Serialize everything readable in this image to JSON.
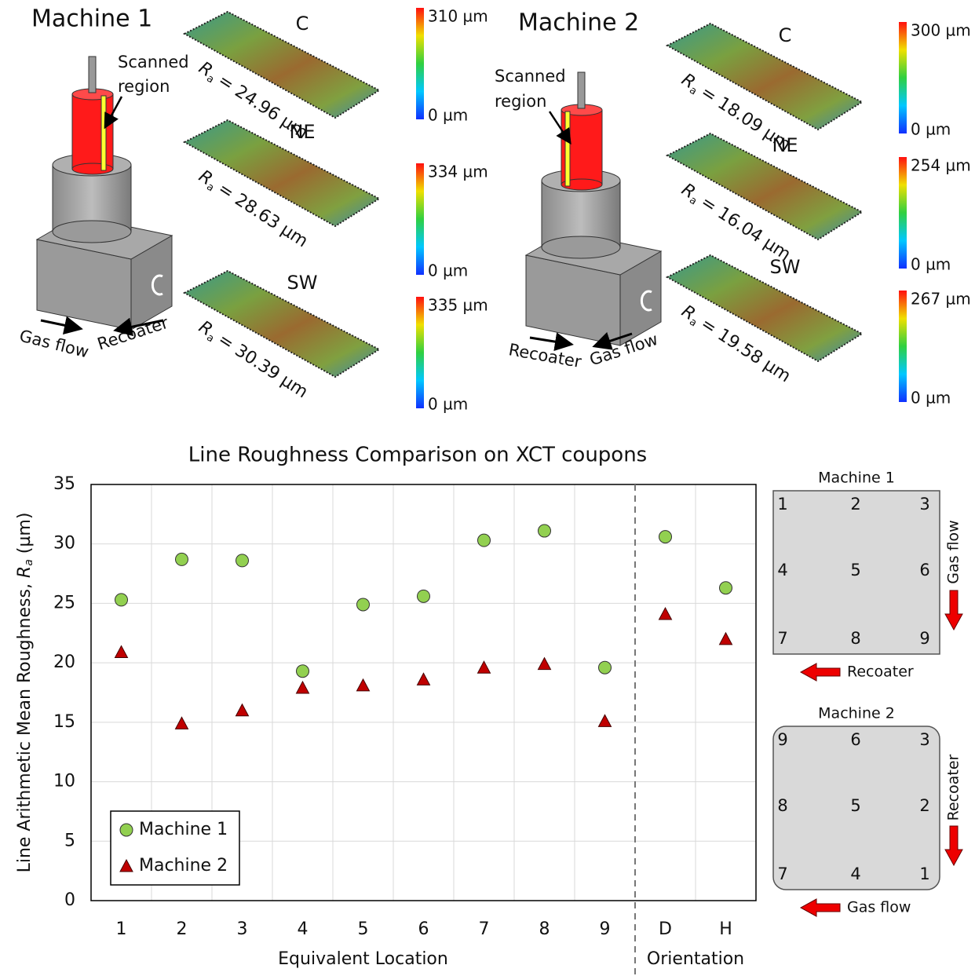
{
  "ra_symbol": "R",
  "ra_subscript": "a",
  "panels": [
    {
      "title": "Machine 1",
      "scanned_label": [
        "Scanned",
        "region"
      ],
      "arrow_labels": [
        "Gas flow",
        "Recoater"
      ],
      "surfaces": [
        {
          "name": "C",
          "ra": "= 24.96 µm",
          "max": "310 µm",
          "min": "0 µm"
        },
        {
          "name": "NE",
          "ra": "= 28.63 µm",
          "max": "334 µm",
          "min": "0 µm"
        },
        {
          "name": "SW",
          "ra": "= 30.39 µm",
          "max": "335 µm",
          "min": "0 µm"
        }
      ]
    },
    {
      "title": "Machine 2",
      "scanned_label": [
        "Scanned",
        "region"
      ],
      "arrow_labels": [
        "Recoater",
        "Gas flow"
      ],
      "surfaces": [
        {
          "name": "C",
          "ra": "= 18.09 µm",
          "max": "300 µm",
          "min": "0 µm"
        },
        {
          "name": "NE",
          "ra": "= 16.04 µm",
          "max": "254 µm",
          "min": "0 µm"
        },
        {
          "name": "SW",
          "ra": "= 19.58 µm",
          "max": "267 µm",
          "min": "0 µm"
        }
      ]
    }
  ],
  "chart_data": {
    "type": "scatter",
    "title": "Line Roughness Comparison on XCT coupons",
    "ylabel": [
      "Line Arithmetic Mean Roughness, ",
      "R",
      "a",
      " (µm)"
    ],
    "xlabel_groups": [
      "Equivalent Location",
      "Orientation"
    ],
    "categories": [
      "1",
      "2",
      "3",
      "4",
      "5",
      "6",
      "7",
      "8",
      "9",
      "D",
      "H"
    ],
    "series": [
      {
        "name": "Machine 1",
        "color": "#92d050",
        "marker": "circle",
        "values": [
          25.3,
          28.7,
          28.6,
          19.3,
          24.9,
          25.6,
          30.3,
          31.1,
          19.6,
          30.6,
          26.3
        ]
      },
      {
        "name": "Machine 2",
        "color": "#c00000",
        "marker": "triangle",
        "values": [
          20.9,
          14.9,
          16.0,
          17.9,
          18.1,
          18.6,
          19.6,
          19.9,
          15.1,
          24.1,
          22.0
        ]
      }
    ],
    "ylim": [
      0,
      35
    ],
    "yticks": [
      0,
      5,
      10,
      15,
      20,
      25,
      30,
      35
    ],
    "grid": true,
    "legend": "lower left"
  },
  "diagrams": [
    {
      "title": "Machine 1",
      "grid": [
        [
          "1",
          "2",
          "3"
        ],
        [
          "4",
          "5",
          "6"
        ],
        [
          "7",
          "8",
          "9"
        ]
      ],
      "side_label": "Gas flow",
      "bottom_label": "Recoater"
    },
    {
      "title": "Machine 2",
      "grid": [
        [
          "9",
          "6",
          "3"
        ],
        [
          "8",
          "5",
          "2"
        ],
        [
          "7",
          "4",
          "1"
        ]
      ],
      "side_label": "Recoater",
      "bottom_label": "Gas flow"
    }
  ]
}
